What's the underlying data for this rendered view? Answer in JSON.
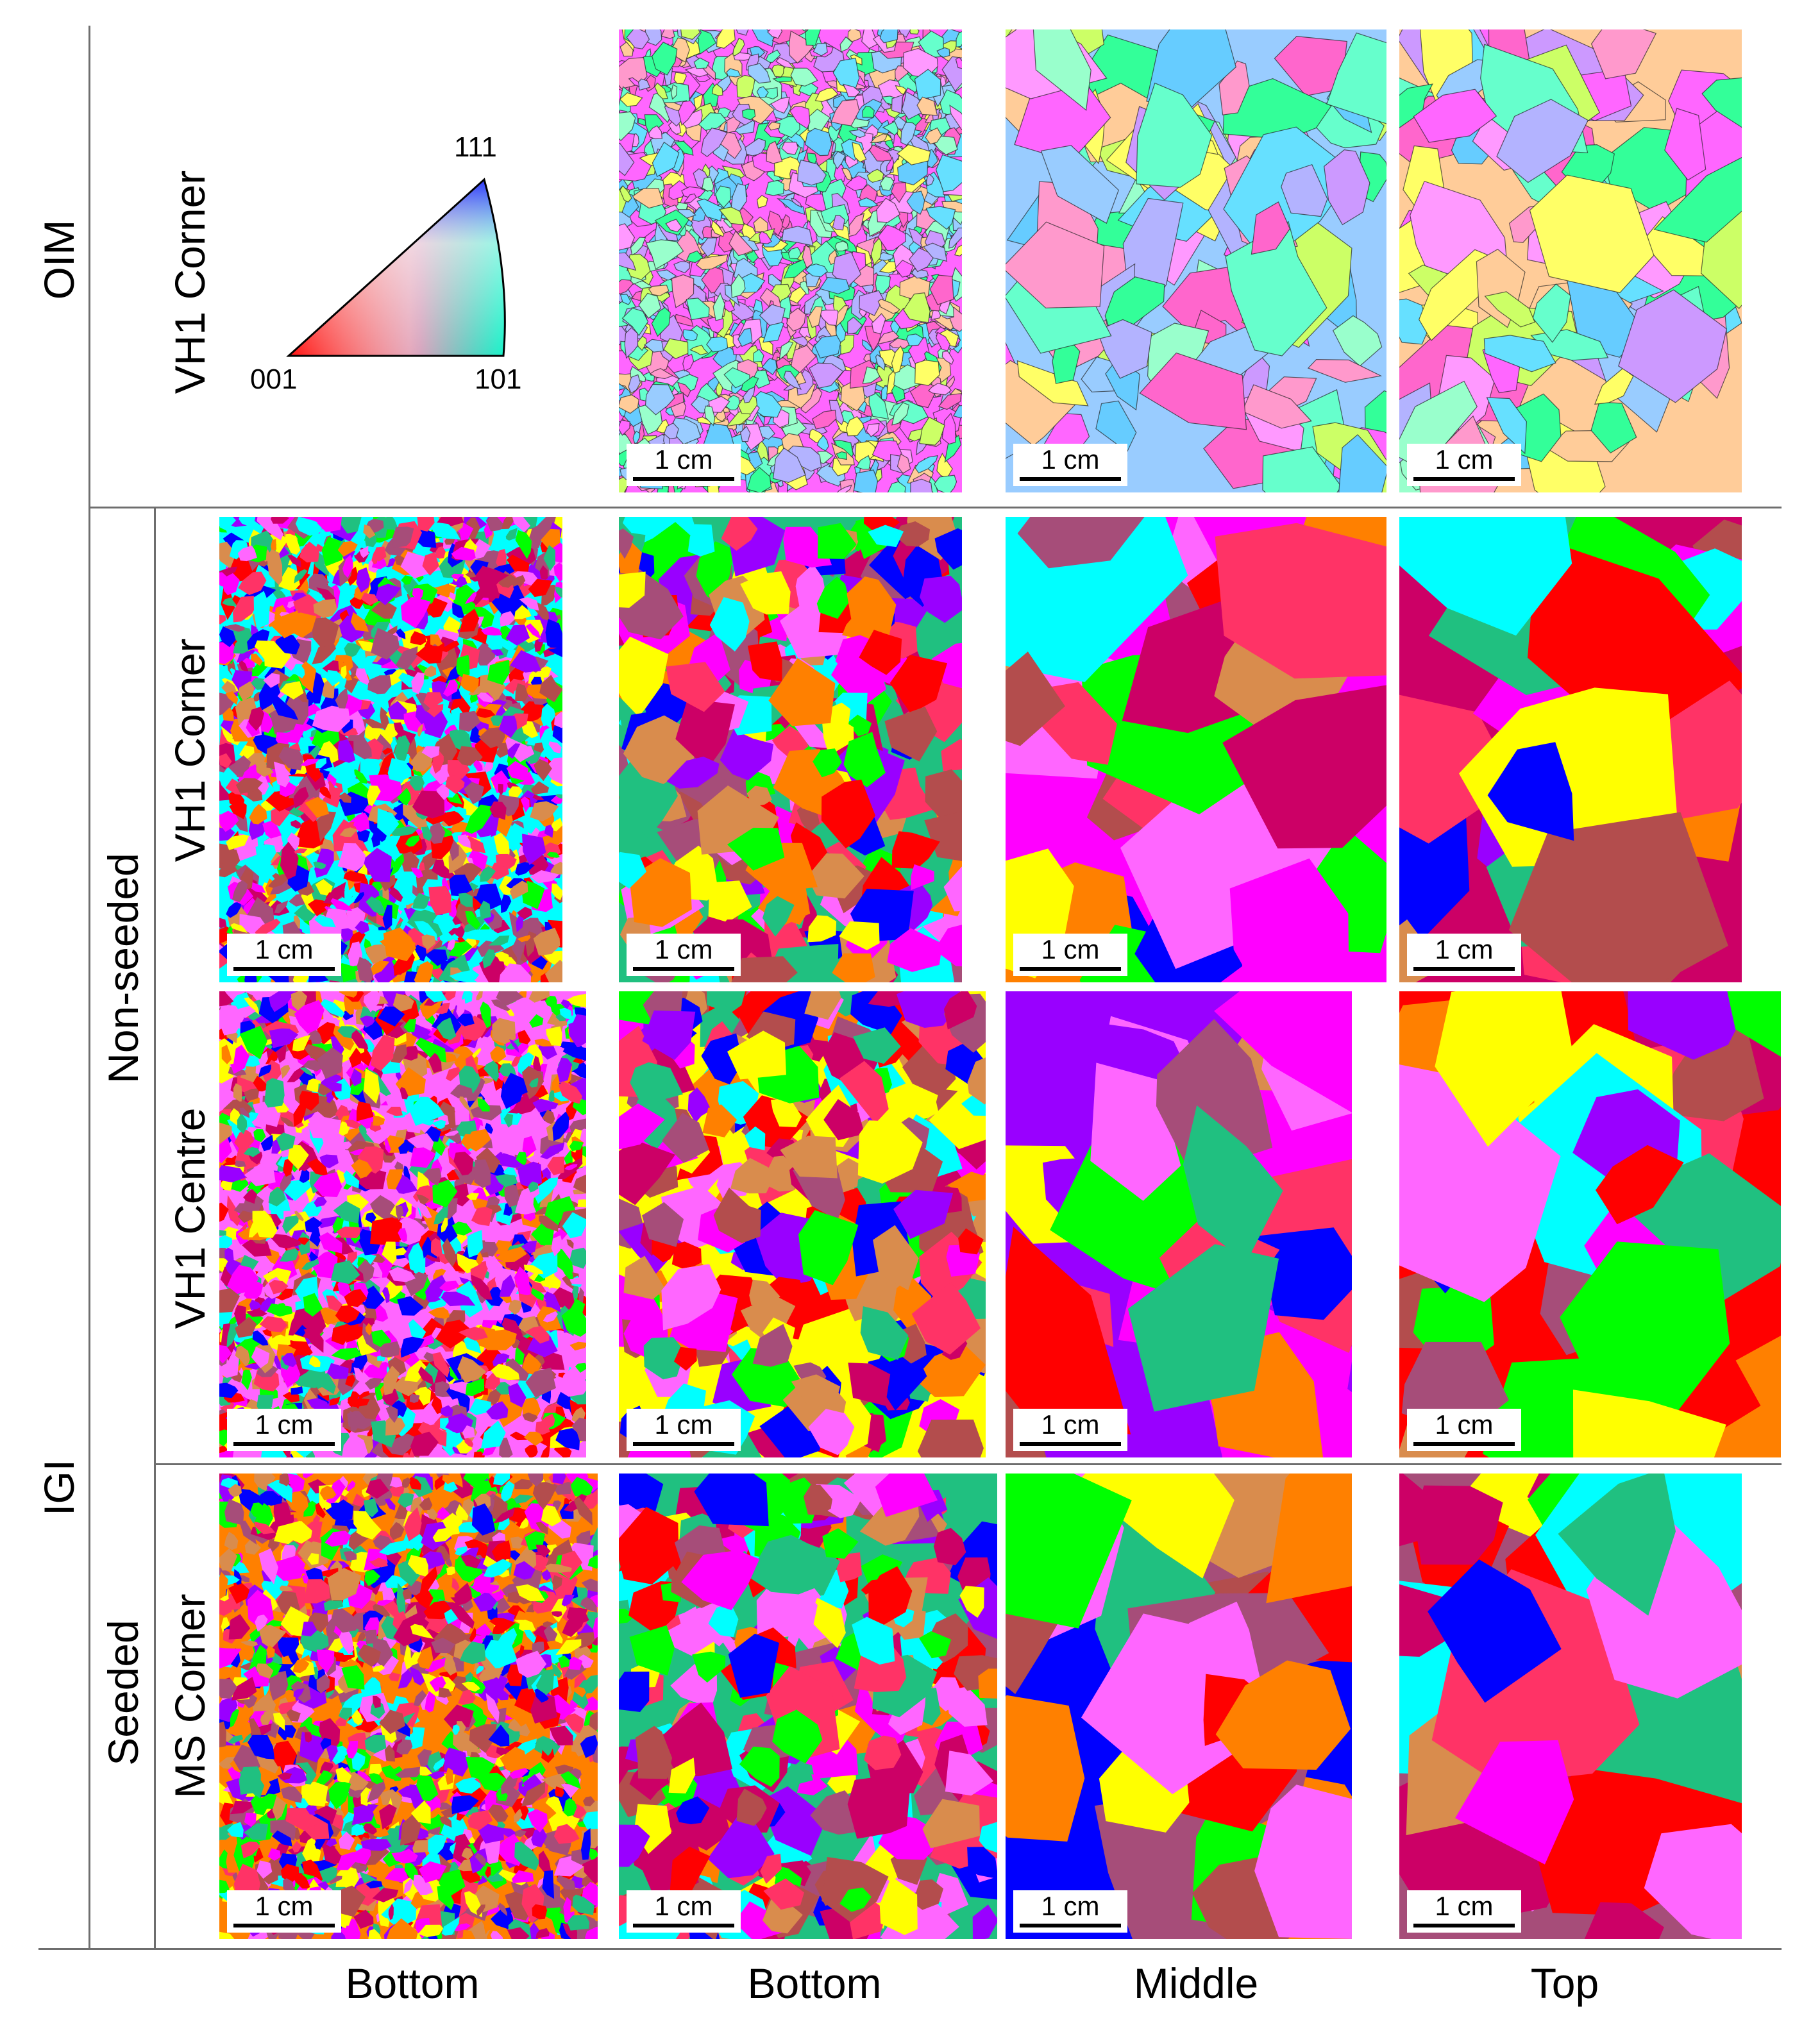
{
  "row_labels": {
    "oim": "OIM",
    "igi": "IGI",
    "non_seeded": "Non-seeded",
    "seeded": "Seeded",
    "vh1_corner_top": "VH1 Corner",
    "vh1_corner": "VH1 Corner",
    "vh1_centre": "VH1 Centre",
    "ms_corner": "MS Corner"
  },
  "column_labels": [
    "Bottom",
    "Bottom",
    "Middle",
    "Top"
  ],
  "ipf_key": {
    "corner_111": "111",
    "corner_001": "001",
    "corner_101": "101"
  },
  "scale_label": "1 cm",
  "palette": {
    "oim": [
      "#ff66cc",
      "#66ccff",
      "#33ff99",
      "#ff66ff",
      "#99ffcc",
      "#cc99ff",
      "#ffff66",
      "#66ffcc",
      "#ff99cc",
      "#99ccff",
      "#ccff66",
      "#ff99ff",
      "#66e0ff",
      "#b3b3ff",
      "#ffcc99"
    ],
    "igi": [
      "#ff0000",
      "#ff00ff",
      "#0000ff",
      "#00ff00",
      "#ffff00",
      "#00ffff",
      "#ff8000",
      "#cc0066",
      "#a64d79",
      "#9900ff",
      "#ff3366",
      "#20c080",
      "#d98c4d",
      "#ff66ff",
      "#b34d4d"
    ]
  },
  "panels": [
    {
      "id": "oim-bottom",
      "set": "oim",
      "grain": "fine"
    },
    {
      "id": "oim-middle",
      "set": "oim",
      "grain": "coarse"
    },
    {
      "id": "oim-top",
      "set": "oim",
      "grain": "coarse"
    },
    {
      "id": "nsc-bottom1",
      "set": "igi",
      "grain": "fine"
    },
    {
      "id": "nsc-bottom2",
      "set": "igi",
      "grain": "medium"
    },
    {
      "id": "nsc-middle",
      "set": "igi",
      "grain": "large"
    },
    {
      "id": "nsc-top",
      "set": "igi",
      "grain": "large"
    },
    {
      "id": "nsce-bottom1",
      "set": "igi",
      "grain": "fine"
    },
    {
      "id": "nsce-bottom2",
      "set": "igi",
      "grain": "medium"
    },
    {
      "id": "nsce-middle",
      "set": "igi",
      "grain": "large"
    },
    {
      "id": "nsce-top",
      "set": "igi",
      "grain": "large"
    },
    {
      "id": "sm-bottom1",
      "set": "igi",
      "grain": "fine"
    },
    {
      "id": "sm-bottom2",
      "set": "igi",
      "grain": "medium"
    },
    {
      "id": "sm-middle",
      "set": "igi",
      "grain": "large"
    },
    {
      "id": "sm-top",
      "set": "igi",
      "grain": "large"
    }
  ]
}
